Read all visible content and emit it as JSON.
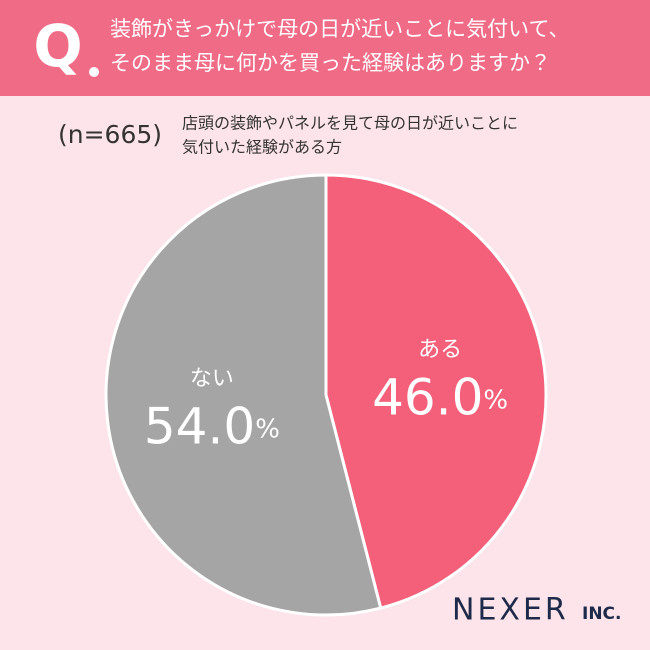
{
  "header": {
    "q_mark": "Q",
    "question": [
      "装飾がきっかけで母の日が近いことに気付いて、",
      "そのまま母に何かを買った経験はありますか？"
    ]
  },
  "chart_data": {
    "type": "pie",
    "note": "(n=665)",
    "subtitle": [
      "店頭の装飾やパネルを見て母の日が近いことに",
      "気付いた経験がある方"
    ],
    "categories": [
      "ある",
      "ない"
    ],
    "values": [
      46.0,
      54.0
    ],
    "value_labels": [
      "46.0",
      "54.0"
    ],
    "unit": "%",
    "colors": [
      "#f4607a",
      "#a5a5a5"
    ]
  },
  "logo": {
    "name": "NEXER",
    "suffix": "INC."
  }
}
